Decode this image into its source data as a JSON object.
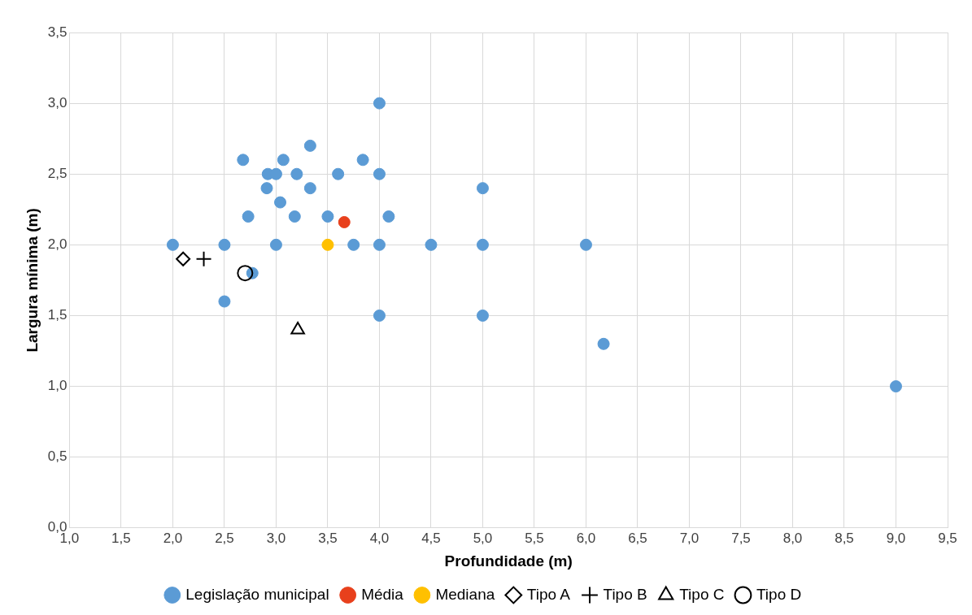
{
  "chart_data": {
    "type": "scatter",
    "xlabel": "Profundidade (m)",
    "ylabel": "Largura mínima (m)",
    "xlim": [
      1.0,
      9.5
    ],
    "xticks": [
      {
        "value": 1.0,
        "label": "1,0"
      },
      {
        "value": 1.5,
        "label": "1,5"
      },
      {
        "value": 2.0,
        "label": "2,0"
      },
      {
        "value": 2.5,
        "label": "2,5"
      },
      {
        "value": 3.0,
        "label": "3,0"
      },
      {
        "value": 3.5,
        "label": "3,5"
      },
      {
        "value": 4.0,
        "label": "4,0"
      },
      {
        "value": 4.5,
        "label": "4,5"
      },
      {
        "value": 5.0,
        "label": "5,0"
      },
      {
        "value": 5.5,
        "label": "5,5"
      },
      {
        "value": 6.0,
        "label": "6,0"
      },
      {
        "value": 6.5,
        "label": "6,5"
      },
      {
        "value": 7.0,
        "label": "7,0"
      },
      {
        "value": 7.5,
        "label": "7,5"
      },
      {
        "value": 8.0,
        "label": "8,0"
      },
      {
        "value": 8.5,
        "label": "8,5"
      },
      {
        "value": 9.0,
        "label": "9,0"
      },
      {
        "value": 9.5,
        "label": "9,5"
      }
    ],
    "ylim": [
      0,
      3.5
    ],
    "yticks": [
      {
        "value": 0,
        "label": "0,0"
      },
      {
        "value": 0.5,
        "label": "0,5"
      },
      {
        "value": 1.0,
        "label": "1,0"
      },
      {
        "value": 1.5,
        "label": "1,5"
      },
      {
        "value": 2.0,
        "label": "2,0"
      },
      {
        "value": 2.5,
        "label": "2,5"
      },
      {
        "value": 3.0,
        "label": "3,0"
      },
      {
        "value": 3.5,
        "label": "3,5"
      }
    ],
    "grid": true,
    "legend": "bottom",
    "series": [
      {
        "name": "Legislação municipal",
        "color": "#5b9bd5",
        "marker": "circle",
        "x": [
          2.0,
          2.5,
          2.5,
          2.68,
          2.73,
          2.77,
          2.91,
          2.92,
          3.0,
          3.0,
          3.04,
          3.07,
          3.18,
          3.2,
          3.33,
          3.33,
          3.5,
          3.6,
          3.75,
          3.84,
          4.0,
          4.0,
          4.0,
          4.0,
          4.09,
          4.5,
          5.0,
          5.0,
          5.0,
          6.0,
          6.17,
          9.0
        ],
        "values": [
          2.0,
          2.0,
          1.6,
          2.6,
          2.2,
          1.8,
          2.4,
          2.5,
          2.5,
          2.0,
          2.3,
          2.6,
          2.2,
          2.5,
          2.7,
          2.4,
          2.2,
          2.5,
          2.0,
          2.6,
          3.0,
          2.5,
          2.0,
          1.5,
          2.2,
          2.0,
          2.4,
          2.0,
          1.5,
          2.0,
          1.3,
          1.0
        ]
      },
      {
        "name": "Média",
        "color": "#e8401c",
        "marker": "circle",
        "x": [
          3.66
        ],
        "values": [
          2.16
        ]
      },
      {
        "name": "Mediana",
        "color": "#ffc000",
        "marker": "circle",
        "x": [
          3.5
        ],
        "values": [
          2.0
        ]
      },
      {
        "name": "Tipo A",
        "color": "#000000",
        "marker": "diamond",
        "x": [
          2.1
        ],
        "values": [
          1.9
        ]
      },
      {
        "name": "Tipo B",
        "color": "#000000",
        "marker": "cross",
        "x": [
          2.3
        ],
        "values": [
          1.9
        ]
      },
      {
        "name": "Tipo C",
        "color": "#000000",
        "marker": "triangle",
        "x": [
          3.21
        ],
        "values": [
          1.4
        ]
      },
      {
        "name": "Tipo D",
        "color": "#000000",
        "marker": "hollow-circle",
        "x": [
          2.7
        ],
        "values": [
          1.8
        ]
      }
    ]
  }
}
